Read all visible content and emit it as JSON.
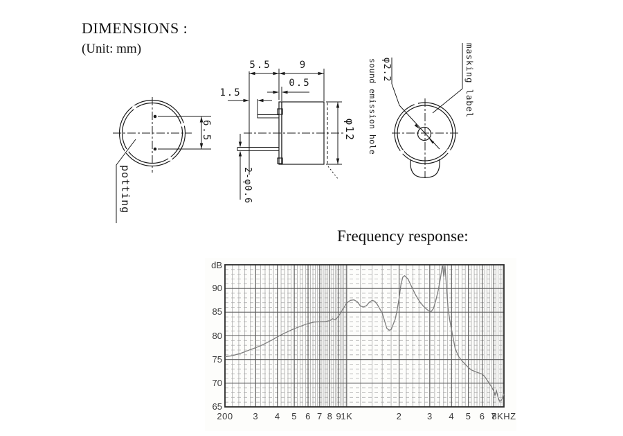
{
  "page": {
    "title": "DIMENSIONS :",
    "unit_note": "(Unit: mm)"
  },
  "drawing": {
    "line_color": "#1a1a1a",
    "bottom_view": {
      "dim_pin_spacing": "6.5",
      "label_potting": "potting"
    },
    "side_view": {
      "dim_pin_length": "5.5",
      "dim_body_depth": "9",
      "dim_flange_thickness": "0.5",
      "dim_pin_offset": "1.5",
      "dim_body_diameter": "φ12",
      "dim_pin_diameter": "2-φ0.6"
    },
    "top_view": {
      "dim_hole_diameter": "φ2.2",
      "label_sound_hole": "sound emission hole",
      "label_masking": "masking label"
    }
  },
  "chart_data": {
    "type": "line",
    "title": "Frequency response:",
    "y_axis_label": "dB",
    "x_scale": "log",
    "xlim": [
      200,
      8000
    ],
    "ylim": [
      65,
      95
    ],
    "y_major_step": 5,
    "y_minor_step": 1,
    "grid": true,
    "legend_position": "none",
    "y_ticks": [
      {
        "v": 90,
        "label": "90"
      },
      {
        "v": 85,
        "label": "85"
      },
      {
        "v": 80,
        "label": "80"
      },
      {
        "v": 75,
        "label": "75"
      },
      {
        "v": 70,
        "label": "70"
      },
      {
        "v": 65,
        "label": "65"
      }
    ],
    "x_ticks": [
      {
        "v": 200,
        "label": "200"
      },
      {
        "v": 300,
        "label": "3"
      },
      {
        "v": 400,
        "label": "4"
      },
      {
        "v": 500,
        "label": "5"
      },
      {
        "v": 600,
        "label": "6"
      },
      {
        "v": 700,
        "label": "7"
      },
      {
        "v": 800,
        "label": "8"
      },
      {
        "v": 900,
        "label": "9"
      },
      {
        "v": 1000,
        "label": "1K"
      },
      {
        "v": 2000,
        "label": "2"
      },
      {
        "v": 3000,
        "label": "3"
      },
      {
        "v": 4000,
        "label": "4"
      },
      {
        "v": 5000,
        "label": "5"
      },
      {
        "v": 6000,
        "label": "6"
      },
      {
        "v": 7000,
        "label": "7"
      },
      {
        "v": 8000,
        "label": "8KHZ"
      }
    ],
    "points": [
      [
        200,
        75.6
      ],
      [
        220,
        75.8
      ],
      [
        250,
        76.4
      ],
      [
        280,
        77.1
      ],
      [
        300,
        77.5
      ],
      [
        320,
        77.9
      ],
      [
        350,
        78.6
      ],
      [
        380,
        79.3
      ],
      [
        400,
        79.8
      ],
      [
        430,
        80.4
      ],
      [
        460,
        80.9
      ],
      [
        500,
        81.5
      ],
      [
        550,
        82.1
      ],
      [
        600,
        82.6
      ],
      [
        650,
        82.9
      ],
      [
        700,
        83.0
      ],
      [
        750,
        83.0
      ],
      [
        800,
        83.2
      ],
      [
        830,
        83.6
      ],
      [
        860,
        83.4
      ],
      [
        900,
        84.2
      ],
      [
        950,
        85.6
      ],
      [
        1000,
        86.9
      ],
      [
        1050,
        87.5
      ],
      [
        1100,
        87.6
      ],
      [
        1150,
        87.2
      ],
      [
        1200,
        86.3
      ],
      [
        1250,
        86.1
      ],
      [
        1300,
        86.4
      ],
      [
        1350,
        87.1
      ],
      [
        1400,
        87.5
      ],
      [
        1450,
        87.3
      ],
      [
        1500,
        86.6
      ],
      [
        1600,
        84.8
      ],
      [
        1700,
        81.6
      ],
      [
        1750,
        81.2
      ],
      [
        1800,
        81.3
      ],
      [
        1900,
        83.5
      ],
      [
        1950,
        85.5
      ],
      [
        2000,
        88.0
      ],
      [
        2050,
        90.8
      ],
      [
        2100,
        92.4
      ],
      [
        2150,
        92.7
      ],
      [
        2250,
        92.0
      ],
      [
        2350,
        90.5
      ],
      [
        2500,
        88.5
      ],
      [
        2650,
        87.0
      ],
      [
        2800,
        86.0
      ],
      [
        2950,
        85.3
      ],
      [
        3050,
        85.1
      ],
      [
        3150,
        85.8
      ],
      [
        3250,
        87.5
      ],
      [
        3350,
        89.5
      ],
      [
        3450,
        92.0
      ],
      [
        3550,
        95.0
      ],
      [
        3610,
        92.5
      ],
      [
        3670,
        94.8
      ],
      [
        3740,
        90.5
      ],
      [
        3820,
        86.0
      ],
      [
        3900,
        83.5
      ],
      [
        4000,
        81.3
      ],
      [
        4200,
        77.3
      ],
      [
        4400,
        75.6
      ],
      [
        4600,
        74.7
      ],
      [
        4800,
        74.0
      ],
      [
        5000,
        73.3
      ],
      [
        5200,
        72.8
      ],
      [
        5500,
        72.4
      ],
      [
        5800,
        72.1
      ],
      [
        6000,
        71.9
      ],
      [
        6200,
        71.4
      ],
      [
        6500,
        70.3
      ],
      [
        6800,
        69.2
      ],
      [
        7000,
        68.3
      ],
      [
        7100,
        67.5
      ],
      [
        7250,
        68.4
      ],
      [
        7400,
        67.0
      ],
      [
        7550,
        66.2
      ],
      [
        7700,
        66.3
      ],
      [
        7850,
        66.8
      ],
      [
        8000,
        67.8
      ]
    ]
  }
}
